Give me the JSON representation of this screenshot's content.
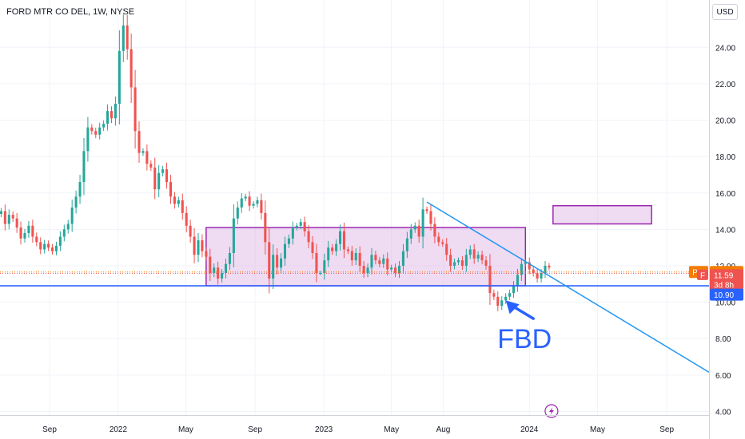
{
  "header": {
    "title": "FORD MTR CO DEL, 1W, NYSE",
    "currency_button": "USD"
  },
  "colors": {
    "up": "#26a69a",
    "down": "#ef5350",
    "zone_fill": "#e1bee7",
    "zone_stroke": "#9c27b0",
    "support_line": "#2962ff",
    "trend_line": "#2196f3",
    "annotation": "#2962ff",
    "pre_badge": "#f57c00",
    "price_badge": "#ef5350",
    "support_badge": "#2962ff"
  },
  "chart_data": {
    "type": "candlestick",
    "symbol": "F",
    "interval": "1W",
    "exchange": "NYSE",
    "currency": "USD",
    "y_ticks": [
      4,
      6,
      8,
      10,
      12,
      14,
      16,
      18,
      20,
      22,
      24
    ],
    "y_tick_labels": [
      "4.00",
      "6.00",
      "8.00",
      "10.00",
      "12.00",
      "14.00",
      "16.00",
      "18.00",
      "20.00",
      "22.00",
      "24.00"
    ],
    "ylim": [
      3.8,
      26.6
    ],
    "x_ticks": [
      {
        "label": "Sep",
        "date": "2021-09-01"
      },
      {
        "label": "2022",
        "date": "2022-01-01"
      },
      {
        "label": "May",
        "date": "2022-05-01"
      },
      {
        "label": "Sep",
        "date": "2022-09-01"
      },
      {
        "label": "2023",
        "date": "2023-01-01"
      },
      {
        "label": "May",
        "date": "2023-05-01"
      },
      {
        "label": "Aug",
        "date": "2023-08-01"
      },
      {
        "label": "2024",
        "date": "2024-01-01"
      },
      {
        "label": "May",
        "date": "2024-05-01"
      },
      {
        "label": "Sep",
        "date": "2024-09-01"
      }
    ],
    "xlim": [
      "2021-06-05",
      "2024-11-15"
    ],
    "candles": [
      {
        "date": "2021-06-07",
        "close": 15.0
      },
      {
        "date": "2021-06-14",
        "close": 14.3
      },
      {
        "date": "2021-06-21",
        "close": 14.8
      },
      {
        "date": "2021-06-28",
        "close": 14.6
      },
      {
        "date": "2021-07-05",
        "close": 14.1
      },
      {
        "date": "2021-07-12",
        "close": 13.5
      },
      {
        "date": "2021-07-19",
        "close": 13.8
      },
      {
        "date": "2021-07-26",
        "close": 14.2
      },
      {
        "date": "2021-08-02",
        "close": 13.6
      },
      {
        "date": "2021-08-09",
        "close": 13.3
      },
      {
        "date": "2021-08-16",
        "close": 12.9
      },
      {
        "date": "2021-08-23",
        "close": 13.2
      },
      {
        "date": "2021-08-30",
        "close": 13.0
      },
      {
        "date": "2021-09-06",
        "close": 12.8
      },
      {
        "date": "2021-09-13",
        "close": 13.1
      },
      {
        "date": "2021-09-20",
        "close": 13.6
      },
      {
        "date": "2021-09-27",
        "close": 14.0
      },
      {
        "date": "2021-10-04",
        "close": 14.3
      },
      {
        "date": "2021-10-11",
        "close": 15.2
      },
      {
        "date": "2021-10-18",
        "close": 15.8
      },
      {
        "date": "2021-10-25",
        "close": 16.6
      },
      {
        "date": "2021-11-01",
        "close": 18.3
      },
      {
        "date": "2021-11-08",
        "close": 19.6
      },
      {
        "date": "2021-11-15",
        "close": 19.4
      },
      {
        "date": "2021-11-22",
        "close": 19.2
      },
      {
        "date": "2021-11-29",
        "close": 19.6
      },
      {
        "date": "2021-12-06",
        "close": 19.8
      },
      {
        "date": "2021-12-13",
        "close": 20.5
      },
      {
        "date": "2021-12-20",
        "close": 20.1
      },
      {
        "date": "2021-12-27",
        "close": 20.9
      },
      {
        "date": "2022-01-03",
        "close": 23.8
      },
      {
        "date": "2022-01-10",
        "close": 25.2
      },
      {
        "date": "2022-01-17",
        "close": 23.9
      },
      {
        "date": "2022-01-24",
        "close": 21.8
      },
      {
        "date": "2022-01-31",
        "close": 19.4
      },
      {
        "date": "2022-02-07",
        "close": 18.2
      },
      {
        "date": "2022-02-14",
        "close": 18.3
      },
      {
        "date": "2022-02-21",
        "close": 17.6
      },
      {
        "date": "2022-02-28",
        "close": 17.4
      },
      {
        "date": "2022-03-07",
        "close": 16.2
      },
      {
        "date": "2022-03-14",
        "close": 17.1
      },
      {
        "date": "2022-03-21",
        "close": 17.3
      },
      {
        "date": "2022-03-28",
        "close": 16.6
      },
      {
        "date": "2022-04-04",
        "close": 15.8
      },
      {
        "date": "2022-04-11",
        "close": 15.4
      },
      {
        "date": "2022-04-18",
        "close": 15.6
      },
      {
        "date": "2022-04-25",
        "close": 14.9
      },
      {
        "date": "2022-05-02",
        "close": 14.2
      },
      {
        "date": "2022-05-09",
        "close": 13.6
      },
      {
        "date": "2022-05-16",
        "close": 12.6
      },
      {
        "date": "2022-05-23",
        "close": 13.4
      },
      {
        "date": "2022-05-30",
        "close": 12.8
      },
      {
        "date": "2022-06-06",
        "close": 12.5
      },
      {
        "date": "2022-06-13",
        "close": 11.6
      },
      {
        "date": "2022-06-20",
        "close": 11.9
      },
      {
        "date": "2022-06-27",
        "close": 11.3
      },
      {
        "date": "2022-07-04",
        "close": 11.6
      },
      {
        "date": "2022-07-11",
        "close": 12.1
      },
      {
        "date": "2022-07-18",
        "close": 12.7
      },
      {
        "date": "2022-07-25",
        "close": 14.6
      },
      {
        "date": "2022-08-01",
        "close": 15.2
      },
      {
        "date": "2022-08-08",
        "close": 15.7
      },
      {
        "date": "2022-08-15",
        "close": 15.8
      },
      {
        "date": "2022-08-22",
        "close": 15.3
      },
      {
        "date": "2022-08-29",
        "close": 15.4
      },
      {
        "date": "2022-09-05",
        "close": 15.6
      },
      {
        "date": "2022-09-12",
        "close": 14.9
      },
      {
        "date": "2022-09-19",
        "close": 13.3
      },
      {
        "date": "2022-09-26",
        "close": 11.3
      },
      {
        "date": "2022-10-03",
        "close": 12.6
      },
      {
        "date": "2022-10-10",
        "close": 11.9
      },
      {
        "date": "2022-10-17",
        "close": 12.4
      },
      {
        "date": "2022-10-24",
        "close": 13.2
      },
      {
        "date": "2022-10-31",
        "close": 13.5
      },
      {
        "date": "2022-11-07",
        "close": 14.1
      },
      {
        "date": "2022-11-14",
        "close": 14.2
      },
      {
        "date": "2022-11-21",
        "close": 14.4
      },
      {
        "date": "2022-11-28",
        "close": 13.9
      },
      {
        "date": "2022-12-05",
        "close": 13.3
      },
      {
        "date": "2022-12-12",
        "close": 12.7
      },
      {
        "date": "2022-12-19",
        "close": 11.6
      },
      {
        "date": "2022-12-26",
        "close": 11.6
      },
      {
        "date": "2023-01-02",
        "close": 12.3
      },
      {
        "date": "2023-01-09",
        "close": 13.0
      },
      {
        "date": "2023-01-16",
        "close": 12.8
      },
      {
        "date": "2023-01-23",
        "close": 13.2
      },
      {
        "date": "2023-01-30",
        "close": 13.9
      },
      {
        "date": "2023-02-06",
        "close": 12.9
      },
      {
        "date": "2023-02-13",
        "close": 12.8
      },
      {
        "date": "2023-02-20",
        "close": 12.3
      },
      {
        "date": "2023-02-27",
        "close": 12.7
      },
      {
        "date": "2023-03-06",
        "close": 12.0
      },
      {
        "date": "2023-03-13",
        "close": 11.6
      },
      {
        "date": "2023-03-20",
        "close": 11.9
      },
      {
        "date": "2023-03-27",
        "close": 12.6
      },
      {
        "date": "2023-04-03",
        "close": 12.3
      },
      {
        "date": "2023-04-10",
        "close": 12.1
      },
      {
        "date": "2023-04-17",
        "close": 12.4
      },
      {
        "date": "2023-04-24",
        "close": 11.8
      },
      {
        "date": "2023-05-01",
        "close": 11.9
      },
      {
        "date": "2023-05-08",
        "close": 11.6
      },
      {
        "date": "2023-05-15",
        "close": 12.0
      },
      {
        "date": "2023-05-22",
        "close": 12.8
      },
      {
        "date": "2023-05-29",
        "close": 13.5
      },
      {
        "date": "2023-06-05",
        "close": 14.0
      },
      {
        "date": "2023-06-12",
        "close": 14.2
      },
      {
        "date": "2023-06-19",
        "close": 13.6
      },
      {
        "date": "2023-06-26",
        "close": 15.1
      },
      {
        "date": "2023-07-03",
        "close": 15.0
      },
      {
        "date": "2023-07-10",
        "close": 14.3
      },
      {
        "date": "2023-07-17",
        "close": 13.6
      },
      {
        "date": "2023-07-24",
        "close": 13.3
      },
      {
        "date": "2023-07-31",
        "close": 13.2
      },
      {
        "date": "2023-08-07",
        "close": 12.6
      },
      {
        "date": "2023-08-14",
        "close": 12.0
      },
      {
        "date": "2023-08-21",
        "close": 12.2
      },
      {
        "date": "2023-08-28",
        "close": 12.3
      },
      {
        "date": "2023-09-04",
        "close": 12.0
      },
      {
        "date": "2023-09-11",
        "close": 12.6
      },
      {
        "date": "2023-09-18",
        "close": 12.9
      },
      {
        "date": "2023-09-25",
        "close": 12.4
      },
      {
        "date": "2023-10-02",
        "close": 12.6
      },
      {
        "date": "2023-10-09",
        "close": 12.3
      },
      {
        "date": "2023-10-16",
        "close": 12.0
      },
      {
        "date": "2023-10-23",
        "close": 10.5
      },
      {
        "date": "2023-10-30",
        "close": 10.3
      },
      {
        "date": "2023-11-06",
        "close": 9.8
      },
      {
        "date": "2023-11-13",
        "close": 10.1
      },
      {
        "date": "2023-11-20",
        "close": 10.3
      },
      {
        "date": "2023-11-27",
        "close": 10.5
      },
      {
        "date": "2023-12-04",
        "close": 10.9
      },
      {
        "date": "2023-12-11",
        "close": 11.5
      },
      {
        "date": "2023-12-18",
        "close": 12.1
      },
      {
        "date": "2023-12-25",
        "close": 12.2
      },
      {
        "date": "2024-01-01",
        "close": 11.8
      },
      {
        "date": "2024-01-08",
        "close": 11.6
      },
      {
        "date": "2024-01-15",
        "close": 11.3
      },
      {
        "date": "2024-01-22",
        "close": 11.6
      },
      {
        "date": "2024-01-29",
        "close": 12.0
      },
      {
        "date": "2024-02-05",
        "close": 11.9
      }
    ],
    "annotations": {
      "range_box": {
        "from": "2022-06-06",
        "to": "2023-12-25",
        "top": 14.1,
        "bottom": 10.9
      },
      "target_box": {
        "from": "2024-02-12",
        "to": "2024-08-05",
        "top": 15.3,
        "bottom": 14.3
      },
      "support_line": {
        "price": 10.9
      },
      "trend_line": {
        "from": {
          "date": "2023-07-03",
          "price": 15.5
        },
        "to": {
          "date": "2024-11-15",
          "price": 6.15
        }
      },
      "text_label": {
        "text": "FBD",
        "date": "2023-11-25",
        "price": 8.0
      },
      "arrow": {
        "from": {
          "date": "2024-01-08",
          "price": 9.1
        },
        "to": {
          "date": "2023-11-20",
          "price": 10.1
        }
      }
    },
    "price_badges": {
      "pre": {
        "label": "Pre",
        "value": "11.66"
      },
      "last": {
        "label": "F",
        "value": "11.59",
        "countdown": "3d 8h"
      },
      "support": {
        "value": "10.90"
      }
    }
  }
}
